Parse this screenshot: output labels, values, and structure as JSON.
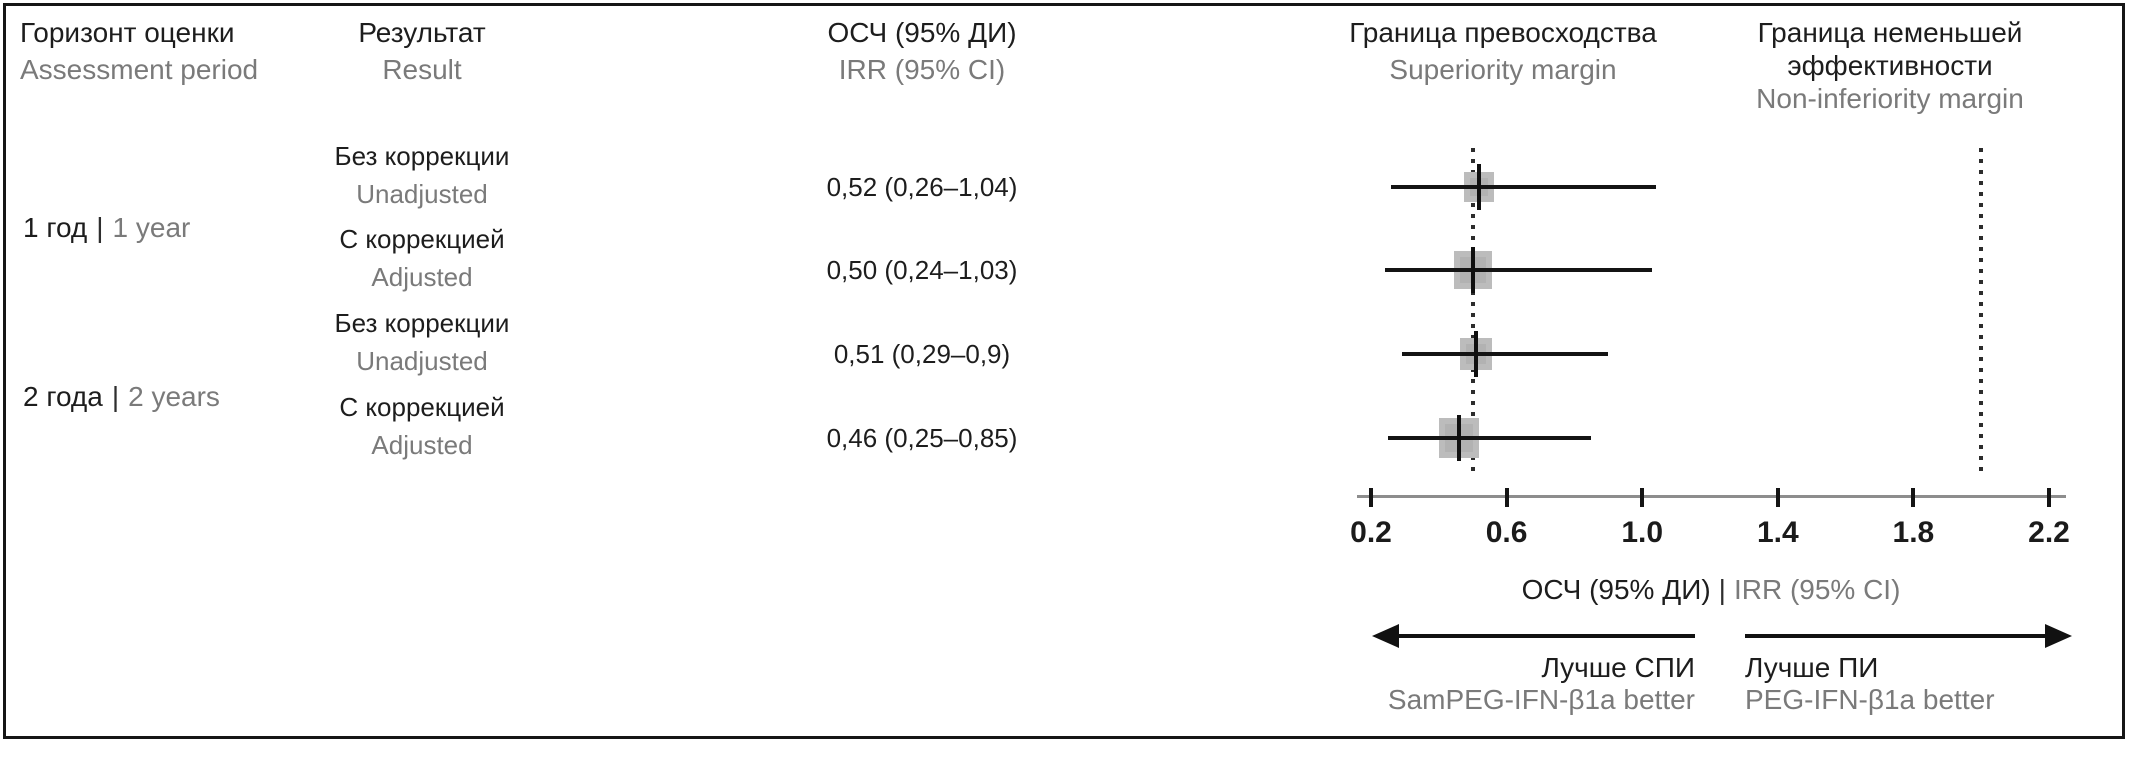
{
  "colors": {
    "text_black": "#1d1d1d",
    "text_gray": "#7a7a7a",
    "marker_gray": "#b2b2b2",
    "axis_gray": "#8d8d8d"
  },
  "separator": "|",
  "headers": {
    "period": {
      "ru": "Горизонт оценки",
      "en": "Assessment period"
    },
    "result": {
      "ru": "Результат",
      "en": "Result"
    },
    "irr": {
      "ru": "ОСЧ (95% ДИ)",
      "en": "IRR (95% CI)"
    },
    "superiority": {
      "ru": "Граница превосходства",
      "en": "Superiority margin"
    },
    "non_inferiority": {
      "ru_line1": "Граница неменьшей",
      "ru_line2": "эффективности",
      "en": "Non-inferiority margin"
    }
  },
  "groups": [
    {
      "ru": "1 год",
      "en": "1 year"
    },
    {
      "ru": "2 года",
      "en": "2 years"
    }
  ],
  "axis_label": {
    "ru": "ОСЧ (95% ДИ)",
    "en": "IRR (95% CI)"
  },
  "direction_labels": {
    "left": {
      "ru": "Лучше СПИ",
      "en": "SamPEG-IFN-β1a better"
    },
    "right": {
      "ru": "Лучше ПИ",
      "en": "PEG-IFN-β1a better"
    }
  },
  "chart_data": {
    "type": "forest",
    "x_range": [
      0.2,
      2.2
    ],
    "ticks": [
      0.2,
      0.6,
      1.0,
      1.4,
      1.8,
      2.2
    ],
    "tick_labels": [
      "0.2",
      "0.6",
      "1.0",
      "1.4",
      "1.8",
      "2.2"
    ],
    "xlabel": "ОСЧ (95% ДИ) | IRR (95% CI)",
    "reference_lines": [
      {
        "name": "superiority-margin",
        "value": 0.5
      },
      {
        "name": "non-inferiority-margin",
        "value": 2.0
      }
    ],
    "rows": [
      {
        "group_ru": "1 год",
        "group_en": "1 year",
        "result_ru": "Без коррекции",
        "result_en": "Unadjusted",
        "irr_text": "0,52 (0,26–1,04)",
        "point": 0.52,
        "ci_low": 0.26,
        "ci_high": 1.04,
        "marker_size": 30
      },
      {
        "group_ru": "1 год",
        "group_en": "1 year",
        "result_ru": "С коррекцией",
        "result_en": "Adjusted",
        "irr_text": "0,50 (0,24–1,03)",
        "point": 0.5,
        "ci_low": 0.24,
        "ci_high": 1.03,
        "marker_size": 38
      },
      {
        "group_ru": "2 года",
        "group_en": "2 years",
        "result_ru": "Без коррекции",
        "result_en": "Unadjusted",
        "irr_text": "0,51 (0,29–0,9)",
        "point": 0.51,
        "ci_low": 0.29,
        "ci_high": 0.9,
        "marker_size": 32
      },
      {
        "group_ru": "2 года",
        "group_en": "2 years",
        "result_ru": "С коррекцией",
        "result_en": "Adjusted",
        "irr_text": "0,46 (0,25–0,85)",
        "point": 0.46,
        "ci_low": 0.25,
        "ci_high": 0.85,
        "marker_size": 40
      }
    ]
  }
}
